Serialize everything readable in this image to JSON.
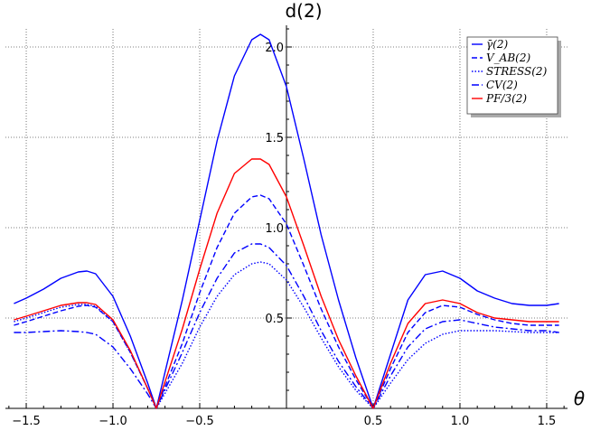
{
  "chart_data": {
    "type": "line",
    "title": "d(2)",
    "xlabel": "θ",
    "ylabel": "",
    "xlim": [
      -1.62,
      1.62
    ],
    "ylim": [
      0,
      2.12
    ],
    "grid": true,
    "legend_position": "top-right",
    "x_ticks": [
      -1.5,
      -1.0,
      -0.5,
      0.5,
      1.0,
      1.5
    ],
    "x_tick_labels": [
      "−1.5",
      "−1.0",
      "−0.5",
      "0.5",
      "1.0",
      "1.5"
    ],
    "y_ticks": [
      0.5,
      1.0,
      1.5,
      2.0
    ],
    "y_tick_labels": [
      "0.5",
      "1.0",
      "1.5",
      "2.0"
    ],
    "series": [
      {
        "name": "γ̄(2)",
        "color": "#0000ff",
        "style": "solid",
        "x": [
          -1.571,
          -1.5,
          -1.4,
          -1.3,
          -1.2,
          -1.15,
          -1.1,
          -1.0,
          -0.9,
          -0.8,
          -0.75,
          -0.6,
          -0.5,
          -0.4,
          -0.3,
          -0.2,
          -0.15,
          -0.1,
          0.0,
          0.1,
          0.2,
          0.3,
          0.4,
          0.5,
          0.6,
          0.7,
          0.8,
          0.9,
          1.0,
          1.1,
          1.2,
          1.3,
          1.4,
          1.5,
          1.571
        ],
        "values": [
          0.58,
          0.61,
          0.66,
          0.72,
          0.755,
          0.76,
          0.745,
          0.62,
          0.4,
          0.14,
          0.0,
          0.6,
          1.04,
          1.48,
          1.84,
          2.04,
          2.07,
          2.04,
          1.78,
          1.38,
          0.96,
          0.6,
          0.28,
          0.0,
          0.3,
          0.6,
          0.74,
          0.76,
          0.72,
          0.65,
          0.61,
          0.58,
          0.57,
          0.57,
          0.58
        ]
      },
      {
        "name": "V_AB(2)",
        "color": "#0000ff",
        "style": "dashed",
        "x": [
          -1.571,
          -1.5,
          -1.4,
          -1.3,
          -1.2,
          -1.15,
          -1.1,
          -1.0,
          -0.9,
          -0.8,
          -0.75,
          -0.6,
          -0.5,
          -0.4,
          -0.3,
          -0.2,
          -0.15,
          -0.1,
          0.0,
          0.1,
          0.2,
          0.3,
          0.4,
          0.5,
          0.6,
          0.7,
          0.8,
          0.9,
          1.0,
          1.1,
          1.2,
          1.3,
          1.4,
          1.5,
          1.571
        ],
        "values": [
          0.46,
          0.48,
          0.51,
          0.54,
          0.565,
          0.57,
          0.56,
          0.48,
          0.31,
          0.11,
          0.0,
          0.36,
          0.64,
          0.89,
          1.08,
          1.17,
          1.18,
          1.16,
          1.02,
          0.79,
          0.55,
          0.34,
          0.16,
          0.0,
          0.22,
          0.42,
          0.53,
          0.57,
          0.56,
          0.52,
          0.49,
          0.47,
          0.46,
          0.46,
          0.46
        ]
      },
      {
        "name": "STRESS(2)",
        "color": "#0000ff",
        "style": "dotted",
        "x": [
          -1.571,
          -1.5,
          -1.4,
          -1.3,
          -1.2,
          -1.15,
          -1.1,
          -1.0,
          -0.9,
          -0.8,
          -0.75,
          -0.6,
          -0.5,
          -0.4,
          -0.3,
          -0.2,
          -0.15,
          -0.1,
          0.0,
          0.1,
          0.2,
          0.3,
          0.4,
          0.5,
          0.6,
          0.7,
          0.8,
          0.9,
          1.0,
          1.1,
          1.2,
          1.3,
          1.4,
          1.5,
          1.571
        ],
        "values": [
          0.48,
          0.5,
          0.53,
          0.56,
          0.575,
          0.575,
          0.565,
          0.48,
          0.31,
          0.11,
          0.0,
          0.25,
          0.45,
          0.62,
          0.74,
          0.8,
          0.81,
          0.8,
          0.71,
          0.56,
          0.39,
          0.23,
          0.1,
          0.0,
          0.14,
          0.27,
          0.36,
          0.41,
          0.43,
          0.43,
          0.43,
          0.425,
          0.42,
          0.42,
          0.42
        ]
      },
      {
        "name": "CV(2)",
        "color": "#0000ff",
        "style": "dashdot",
        "x": [
          -1.571,
          -1.5,
          -1.4,
          -1.3,
          -1.2,
          -1.15,
          -1.1,
          -1.0,
          -0.9,
          -0.8,
          -0.75,
          -0.6,
          -0.5,
          -0.4,
          -0.3,
          -0.2,
          -0.15,
          -0.1,
          0.0,
          0.1,
          0.2,
          0.3,
          0.4,
          0.5,
          0.6,
          0.7,
          0.8,
          0.9,
          1.0,
          1.1,
          1.2,
          1.3,
          1.4,
          1.5,
          1.571
        ],
        "values": [
          0.42,
          0.42,
          0.425,
          0.43,
          0.425,
          0.42,
          0.41,
          0.34,
          0.22,
          0.08,
          0.0,
          0.31,
          0.53,
          0.72,
          0.86,
          0.91,
          0.91,
          0.89,
          0.79,
          0.62,
          0.43,
          0.26,
          0.12,
          0.0,
          0.18,
          0.34,
          0.44,
          0.48,
          0.49,
          0.47,
          0.45,
          0.44,
          0.43,
          0.43,
          0.42
        ]
      },
      {
        "name": "PF/3(2)",
        "color": "#ff0000",
        "style": "solid",
        "x": [
          -1.571,
          -1.5,
          -1.4,
          -1.3,
          -1.2,
          -1.15,
          -1.1,
          -1.0,
          -0.9,
          -0.8,
          -0.75,
          -0.6,
          -0.5,
          -0.4,
          -0.3,
          -0.2,
          -0.15,
          -0.1,
          0.0,
          0.1,
          0.2,
          0.3,
          0.4,
          0.5,
          0.6,
          0.7,
          0.8,
          0.9,
          1.0,
          1.1,
          1.2,
          1.3,
          1.4,
          1.5,
          1.571
        ],
        "values": [
          0.49,
          0.51,
          0.54,
          0.57,
          0.585,
          0.585,
          0.575,
          0.49,
          0.32,
          0.11,
          0.0,
          0.44,
          0.77,
          1.08,
          1.3,
          1.38,
          1.38,
          1.35,
          1.17,
          0.9,
          0.62,
          0.38,
          0.18,
          0.0,
          0.25,
          0.47,
          0.58,
          0.6,
          0.58,
          0.53,
          0.5,
          0.49,
          0.48,
          0.48,
          0.48
        ]
      }
    ]
  }
}
